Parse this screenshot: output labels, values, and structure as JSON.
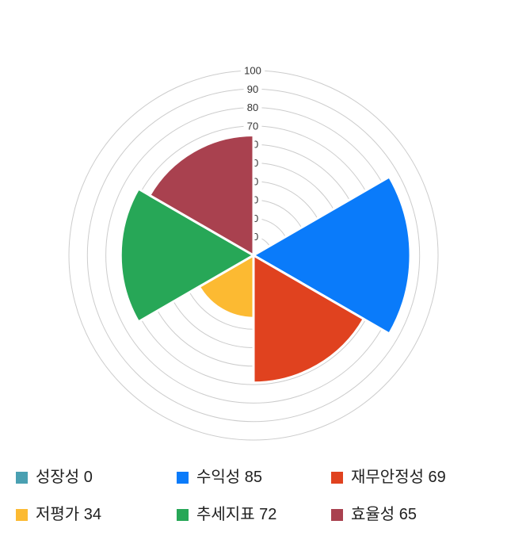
{
  "page": {
    "background": "#ffffff"
  },
  "chart_data": {
    "type": "polar_area",
    "title": "",
    "categories": [
      "성장성",
      "수익성",
      "재무안정성",
      "저평가",
      "추세지표",
      "효율성"
    ],
    "values": [
      0,
      85,
      69,
      34,
      72,
      65
    ],
    "colors": [
      "#4aa0b2",
      "#0a7bfa",
      "#e0421f",
      "#fcba32",
      "#27a757",
      "#a9414f"
    ],
    "axis": {
      "min": 0,
      "max": 100,
      "step": 10,
      "tick_labels": [
        "10",
        "20",
        "30",
        "40",
        "50",
        "60",
        "70",
        "80",
        "90",
        "100"
      ]
    },
    "start_angle_deg": 0,
    "sector_sweep_deg": 60,
    "direction": "clockwise",
    "grid": {
      "show": true,
      "color": "#cccccc"
    },
    "tick_style": {
      "color": "#333333",
      "font_size": 13
    },
    "legend_position": "bottom",
    "legend_items": [
      {
        "label": "성장성",
        "value": "0",
        "text": "성장성 0",
        "color": "#4aa0b2"
      },
      {
        "label": "수익성",
        "value": "85",
        "text": "수익성 85",
        "color": "#0a7bfa"
      },
      {
        "label": "재무안정성",
        "value": "69",
        "text": "재무안정성 69",
        "color": "#e0421f"
      },
      {
        "label": "저평가",
        "value": "34",
        "text": "저평가 34",
        "color": "#fcba32"
      },
      {
        "label": "추세지표",
        "value": "72",
        "text": "추세지표 72",
        "color": "#27a757"
      },
      {
        "label": "효율성",
        "value": "65",
        "text": "효율성 65",
        "color": "#a9414f"
      }
    ]
  }
}
